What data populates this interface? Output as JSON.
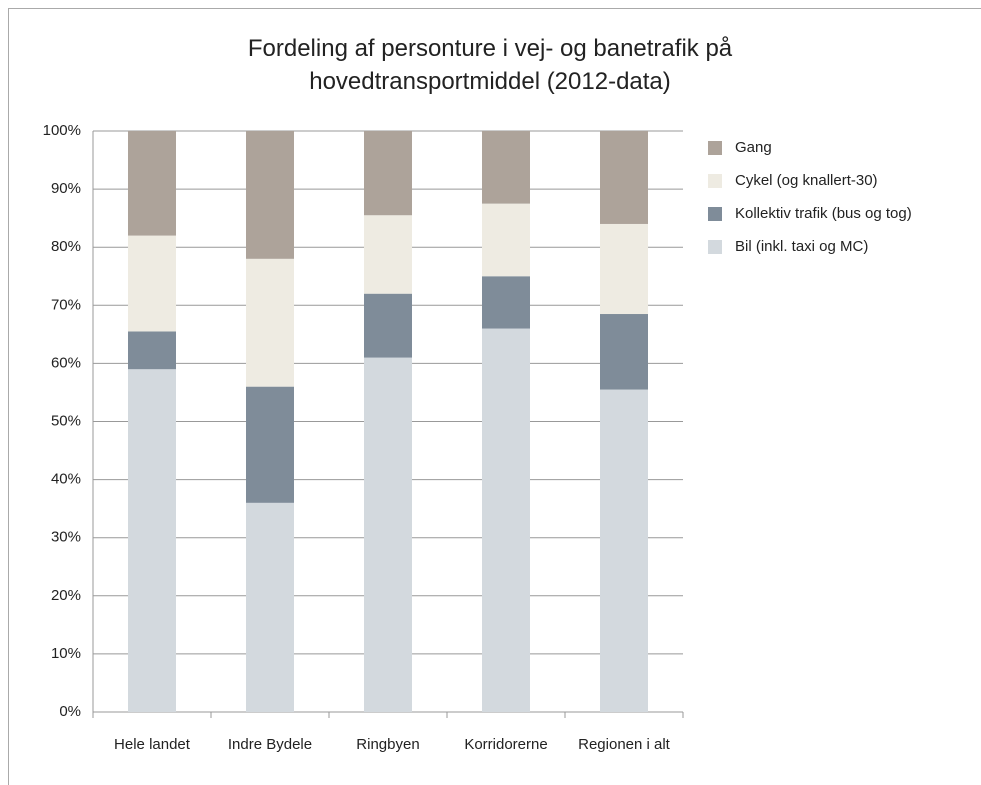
{
  "chart_data": {
    "type": "stacked_bar",
    "title": "Fordeling af personture i vej- og banetrafik på hovedtransportmiddel (2012-data)",
    "categories": [
      "Hele landet",
      "Indre Bydele",
      "Ringbyen",
      "Korridorerne",
      "Regionen i alt"
    ],
    "series": [
      {
        "name": "Bil (inkl. taxi og MC)",
        "color": "#d3d9de",
        "values": [
          59,
          36,
          61,
          66,
          55.5
        ]
      },
      {
        "name": "Kollektiv trafik (bus og tog)",
        "color": "#7f8c99",
        "values": [
          6.5,
          20,
          11,
          9,
          13
        ]
      },
      {
        "name": "Cykel (og knallert-30)",
        "color": "#eeebe2",
        "values": [
          16.5,
          22,
          13.5,
          12.5,
          15.5
        ]
      },
      {
        "name": "Gang",
        "color": "#ada39a",
        "values": [
          18,
          22,
          14.5,
          12.5,
          16
        ]
      }
    ],
    "ylim": [
      0,
      100
    ],
    "yticks": [
      {
        "value": 0,
        "label": "0%"
      },
      {
        "value": 10,
        "label": "10%"
      },
      {
        "value": 20,
        "label": "20%"
      },
      {
        "value": 30,
        "label": "30%"
      },
      {
        "value": 40,
        "label": "40%"
      },
      {
        "value": 50,
        "label": "50%"
      },
      {
        "value": 60,
        "label": "60%"
      },
      {
        "value": 70,
        "label": "70%"
      },
      {
        "value": 80,
        "label": "80%"
      },
      {
        "value": 90,
        "label": "90%"
      },
      {
        "value": 100,
        "label": "100%"
      }
    ],
    "grid": true,
    "legend": "right"
  }
}
